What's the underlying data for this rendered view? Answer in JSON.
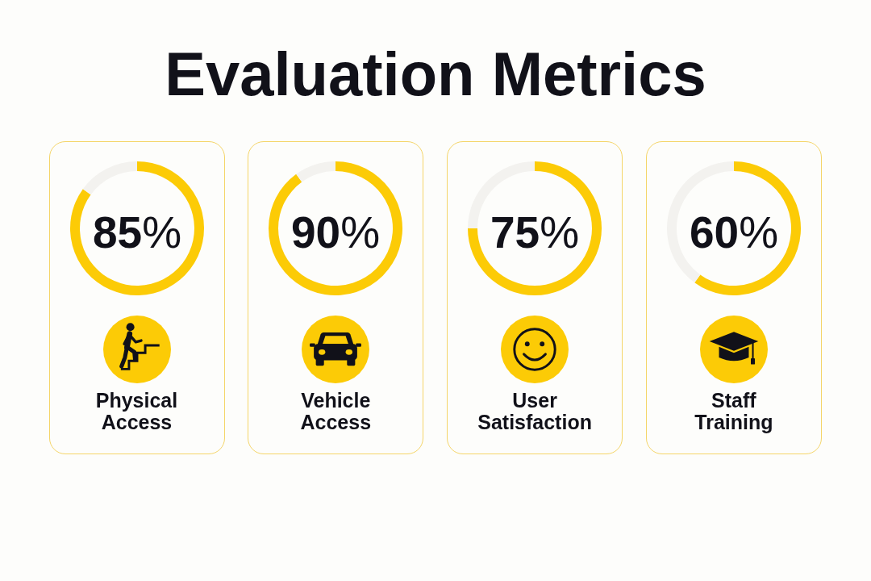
{
  "chart_data": [
    {
      "type": "other",
      "title": "Evaluation Metrics"
    },
    {
      "type": "donut",
      "title": "Physical Access",
      "categories": [
        null,
        null
      ],
      "values": [
        85,
        15
      ],
      "colors": [
        "#fccb06",
        "#f3f2ef"
      ],
      "value_labels": [
        "85%",
        null
      ]
    },
    {
      "type": "donut",
      "title": "Vehicle Access",
      "categories": [
        null,
        null
      ],
      "values": [
        90,
        10
      ],
      "colors": [
        "#fccb06",
        "#f3f2ef"
      ],
      "value_labels": [
        "90%",
        null
      ]
    },
    {
      "type": "donut",
      "title": "User Satisfaction",
      "categories": [
        null,
        null
      ],
      "values": [
        75,
        25
      ],
      "colors": [
        "#fccb06",
        "#f3f2ef"
      ],
      "value_labels": [
        "75%",
        null
      ]
    },
    {
      "type": "donut",
      "title": "Staff Training",
      "categories": [
        null,
        null
      ],
      "values": [
        60,
        40
      ],
      "colors": [
        "#fccb06",
        "#f3f2ef"
      ],
      "value_labels": [
        "60%",
        null
      ]
    }
  ]
}
